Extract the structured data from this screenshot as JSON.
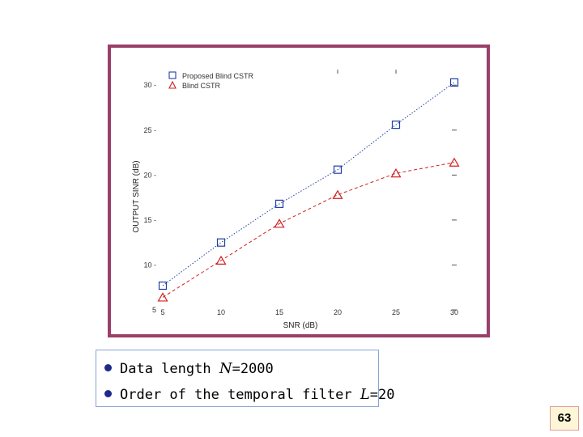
{
  "chart_data": {
    "type": "line",
    "xlabel": "SNR (dB)",
    "ylabel": "OUTPUT SINR (dB)",
    "xlim": [
      5,
      30
    ],
    "ylim": [
      5,
      32
    ],
    "x_ticks": [
      "5",
      "10",
      "15",
      "20",
      "25",
      "30"
    ],
    "y_ticks": [
      "5",
      "10",
      "15",
      "20",
      "25",
      "30"
    ],
    "legend_position": "top-left",
    "series": [
      {
        "name": "Proposed Blind CSTR",
        "marker": "square",
        "color": "#1f3fa6",
        "line_style": "dotted",
        "x": [
          5,
          10,
          15,
          20,
          25,
          30
        ],
        "y": [
          7.7,
          12.5,
          16.8,
          20.6,
          25.6,
          30.3
        ]
      },
      {
        "name": "Blind CSTR",
        "marker": "triangle",
        "color": "#d02020",
        "line_style": "dashed",
        "x": [
          5,
          10,
          15,
          20,
          25,
          30
        ],
        "y": [
          6.4,
          10.5,
          14.6,
          17.8,
          20.2,
          21.4
        ]
      }
    ]
  },
  "bullets": {
    "line1": {
      "text": "Data length ",
      "var": "N",
      "suffix": "=2000"
    },
    "line2": {
      "text": "Order of the temporal filter ",
      "var": "L",
      "suffix": "=20"
    }
  },
  "page_number": "63",
  "colors": {
    "frame": "#9a3f6a",
    "bullet": "#1d2a8a",
    "page_box_bg": "#fff6d8",
    "page_box_border": "#e09a9a"
  }
}
